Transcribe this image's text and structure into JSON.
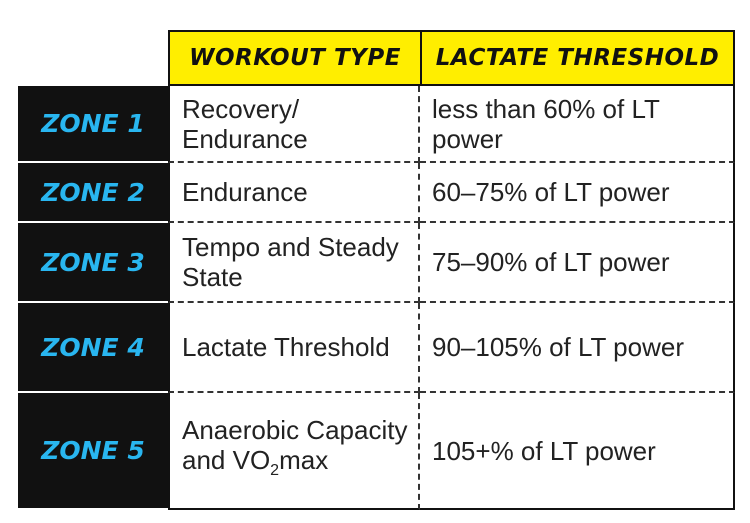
{
  "table": {
    "header": [
      "WORKOUT TYPE",
      "LACTATE THRESHOLD"
    ],
    "rows": [
      {
        "zone": "ZONE 1",
        "workout": "Recovery/ Endurance",
        "threshold": "less than 60% of LT power"
      },
      {
        "zone": "ZONE 2",
        "workout": "Endurance",
        "threshold": "60–75% of LT power"
      },
      {
        "zone": "ZONE 3",
        "workout": "Tempo and Steady State",
        "threshold": "75–90% of LT power"
      },
      {
        "zone": "ZONE 4",
        "workout": "Lactate Threshold",
        "threshold": "90–105% of LT power"
      },
      {
        "zone": "ZONE 5",
        "workout": {
          "text": "Anaerobic Capacity and VO",
          "sub": "2",
          "after": "max"
        },
        "threshold": "105+% of LT power"
      }
    ]
  }
}
